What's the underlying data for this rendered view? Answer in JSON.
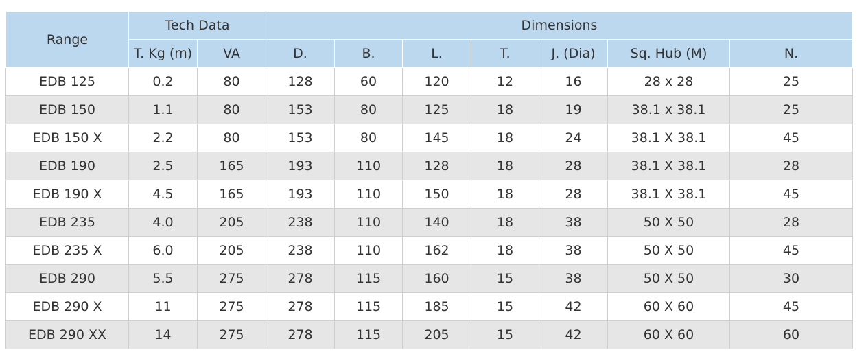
{
  "header": {
    "range": "Range",
    "tech_data": "Tech Data",
    "dimensions": "Dimensions",
    "columns": [
      "T. Kg (m)",
      "VA",
      "D.",
      "B.",
      "L.",
      "T.",
      "J. (Dia)",
      "Sq. Hub (M)",
      "N."
    ]
  },
  "table": {
    "rows": [
      [
        "EDB 125",
        "0.2",
        "80",
        "128",
        "60",
        "120",
        "12",
        "16",
        "28 x 28",
        "25"
      ],
      [
        "EDB 150",
        "1.1",
        "80",
        "153",
        "80",
        "125",
        "18",
        "19",
        "38.1 x 38.1",
        "25"
      ],
      [
        "EDB 150 X",
        "2.2",
        "80",
        "153",
        "80",
        "145",
        "18",
        "24",
        "38.1 X 38.1",
        "45"
      ],
      [
        "EDB 190",
        "2.5",
        "165",
        "193",
        "110",
        "128",
        "18",
        "28",
        "38.1 X 38.1",
        "28"
      ],
      [
        "EDB 190 X",
        "4.5",
        "165",
        "193",
        "110",
        "150",
        "18",
        "28",
        "38.1 X 38.1",
        "45"
      ],
      [
        "EDB 235",
        "4.0",
        "205",
        "238",
        "110",
        "140",
        "18",
        "38",
        "50 X 50",
        "28"
      ],
      [
        "EDB 235 X",
        "6.0",
        "205",
        "238",
        "110",
        "162",
        "18",
        "38",
        "50 X 50",
        "45"
      ],
      [
        "EDB 290",
        "5.5",
        "275",
        "278",
        "115",
        "160",
        "15",
        "38",
        "50 X 50",
        "30"
      ],
      [
        "EDB 290 X",
        "11",
        "275",
        "278",
        "115",
        "185",
        "15",
        "42",
        "60 X 60",
        "45"
      ],
      [
        "EDB 290 XX",
        "14",
        "275",
        "278",
        "115",
        "205",
        "15",
        "42",
        "60 X 60",
        "60"
      ]
    ]
  }
}
